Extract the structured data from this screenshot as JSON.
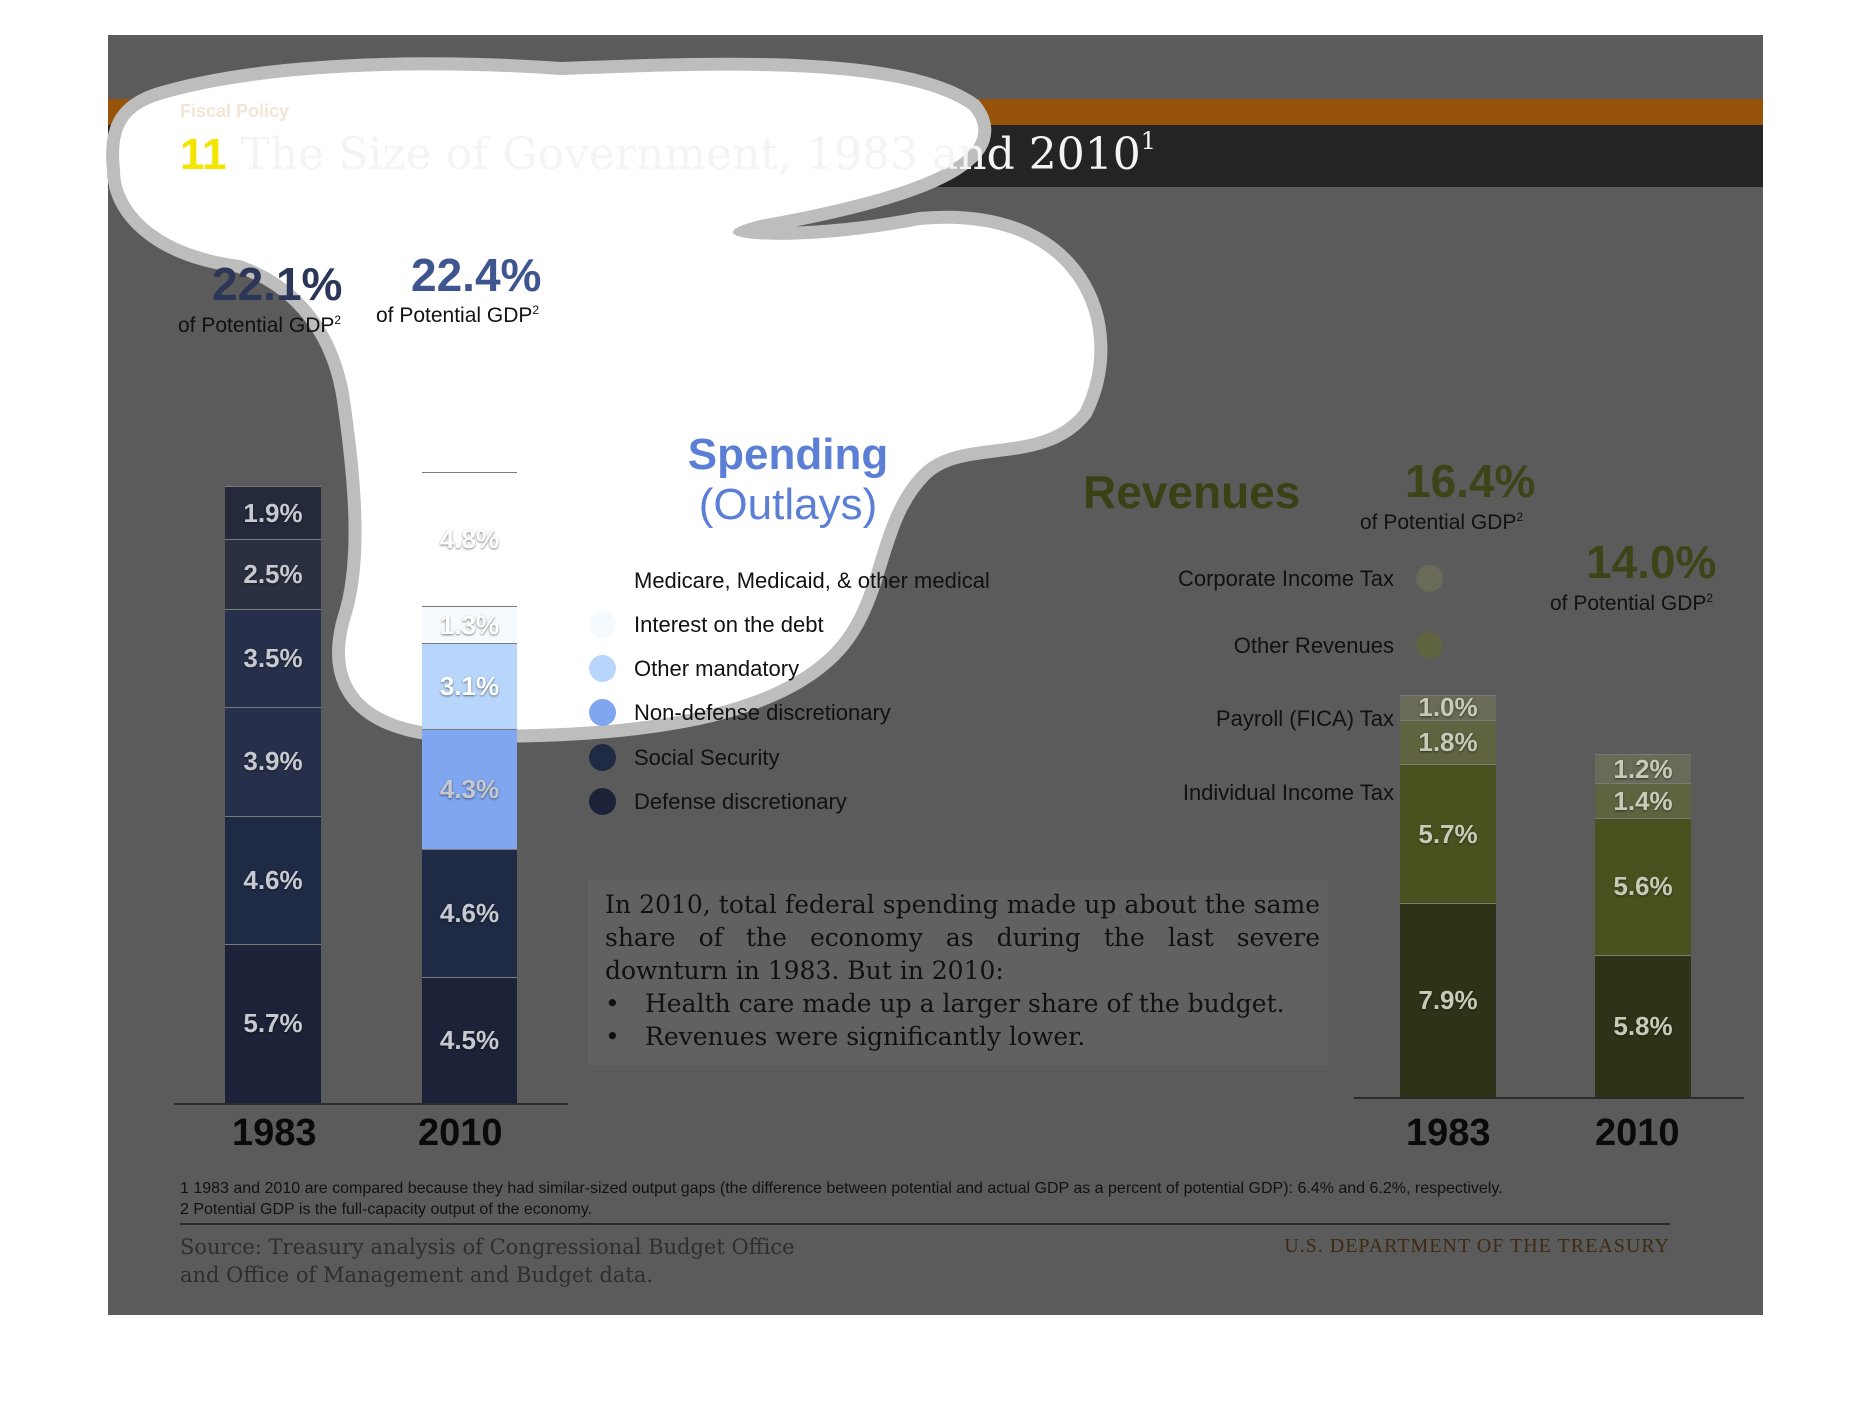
{
  "header": {
    "section_label": "Fiscal Policy",
    "title_number": "11",
    "title_text": "The Size of Government, 1983 and 2010",
    "title_superscript": "1"
  },
  "colors": {
    "defense": "#1c2338",
    "social_security": "#1f2a45",
    "nondefense": "#7fa6ee",
    "other_mandatory": "#b8d6fb",
    "interest": "#f4fafe",
    "medical": "#ffffff",
    "spend_1983_1": "#242a3a",
    "spend_1983_2": "#2b3040",
    "spend_1983_3": "#27304a",
    "rev_individual": "#2e3318",
    "rev_payroll": "#49521f",
    "rev_other": "#5f6340",
    "rev_corporate": "#6a6a58"
  },
  "spending": {
    "title_bold": "Spending",
    "title_sub": "(Outlays)",
    "total_1983": "22.1%",
    "total_2010": "22.4%",
    "potential_gdp": "of Potential GDP",
    "footnote_mark": "2",
    "legend": [
      {
        "label": "Medicare, Medicaid, & other medical",
        "color_key": "medical"
      },
      {
        "label": "Interest on the debt",
        "color_key": "interest"
      },
      {
        "label": "Other mandatory",
        "color_key": "other_mandatory"
      },
      {
        "label": "Non-defense discretionary",
        "color_key": "nondefense"
      },
      {
        "label": "Social Security",
        "color_key": "social_security"
      },
      {
        "label": "Defense discretionary",
        "color_key": "defense"
      }
    ]
  },
  "revenues": {
    "title": "Revenues",
    "total_1983": "16.4%",
    "total_2010": "14.0%",
    "potential_gdp": "of Potential GDP",
    "footnote_mark": "2",
    "legend": [
      {
        "label": "Corporate Income Tax",
        "color_key": "rev_corporate"
      },
      {
        "label": "Other Revenues",
        "color_key": "rev_other"
      },
      {
        "label": "Payroll (FICA) Tax",
        "color_key": "rev_payroll"
      },
      {
        "label": "Individual Income Tax",
        "color_key": "rev_individual"
      }
    ]
  },
  "chart_data": [
    {
      "type": "bar",
      "stacked": true,
      "categories": [
        "1983",
        "2010"
      ],
      "series": [
        {
          "name": "Defense discretionary",
          "values": [
            5.7,
            4.5
          ],
          "labels": [
            "5.7%",
            "4.5%"
          ]
        },
        {
          "name": "Social Security",
          "values": [
            4.6,
            4.6
          ],
          "labels": [
            "4.6%",
            "4.6%"
          ]
        },
        {
          "name": "Non-defense discretionary",
          "values": [
            3.9,
            4.3
          ],
          "labels": [
            "3.9%",
            "4.3%"
          ]
        },
        {
          "name": "Other mandatory",
          "values": [
            3.5,
            3.1
          ],
          "labels": [
            "3.5%",
            "3.1%"
          ]
        },
        {
          "name": "Interest on the debt",
          "values": [
            2.5,
            1.3
          ],
          "labels": [
            "2.5%",
            "1.3%"
          ]
        },
        {
          "name": "Medicare, Medicaid, & other medical",
          "values": [
            1.9,
            4.8
          ],
          "labels": [
            "1.9%",
            "4.8%"
          ]
        }
      ],
      "totals": [
        "22.1%",
        "22.4%"
      ]
    },
    {
      "type": "bar",
      "stacked": true,
      "categories": [
        "1983",
        "2010"
      ],
      "series": [
        {
          "name": "Individual Income Tax",
          "values": [
            7.9,
            5.8
          ],
          "labels": [
            "7.9%",
            "5.8%"
          ]
        },
        {
          "name": "Payroll (FICA) Tax",
          "values": [
            5.7,
            5.6
          ],
          "labels": [
            "5.7%",
            "5.6%"
          ]
        },
        {
          "name": "Other Revenues",
          "values": [
            1.8,
            1.4
          ],
          "labels": [
            "1.8%",
            "1.4%"
          ]
        },
        {
          "name": "Corporate Income Tax",
          "values": [
            1.0,
            1.2
          ],
          "labels": [
            "1.0%",
            "1.2%"
          ]
        }
      ],
      "totals": [
        "16.4%",
        "14.0%"
      ]
    }
  ],
  "note": {
    "text": "In 2010, total federal spending made up about the same share of the economy as during the last severe downturn in 1983. But in 2010:",
    "bullets": [
      "Health care made up a larger share of the budget.",
      "Revenues were significantly lower."
    ]
  },
  "footnotes": [
    "1 1983 and 2010 are compared because they had similar-sized output gaps (the difference between potential and actual GDP as a percent of potential GDP): 6.4% and 6.2%, respectively.",
    "2 Potential GDP is the full-capacity output of the economy."
  ],
  "footer": {
    "source_line1": "Source: Treasury analysis of Congressional Budget Office",
    "source_line2": "and Office of Management and Budget data.",
    "agency": "U.S. DEPARTMENT OF THE TREASURY"
  }
}
